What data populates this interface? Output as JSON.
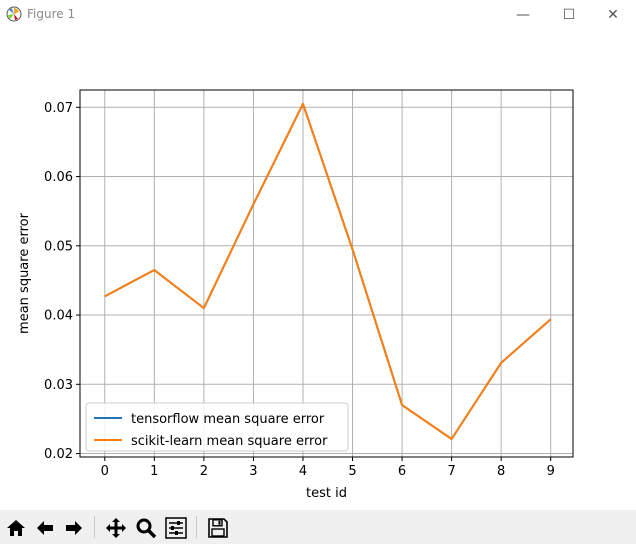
{
  "window": {
    "title": "Figure 1",
    "controls": {
      "minimize": "—",
      "maximize": "☐",
      "close": "✕"
    }
  },
  "toolbar": {
    "buttons": [
      {
        "name": "home-icon",
        "label": "Home"
      },
      {
        "name": "back-icon",
        "label": "Back"
      },
      {
        "name": "forward-icon",
        "label": "Forward"
      },
      {
        "name": "pan-icon",
        "label": "Pan"
      },
      {
        "name": "zoom-icon",
        "label": "Zoom"
      },
      {
        "name": "configure-subplots-icon",
        "label": "Subplots"
      },
      {
        "name": "save-icon",
        "label": "Save"
      }
    ]
  },
  "chart_data": {
    "type": "line",
    "title": "",
    "xlabel": "test id",
    "ylabel": "mean square error",
    "x": [
      0,
      1,
      2,
      3,
      4,
      5,
      6,
      7,
      8,
      9
    ],
    "xticks": [
      "0",
      "1",
      "2",
      "3",
      "4",
      "5",
      "6",
      "7",
      "8",
      "9"
    ],
    "yticks": [
      "0.02",
      "0.03",
      "0.04",
      "0.05",
      "0.06",
      "0.07"
    ],
    "xlim": [
      -0.5,
      9.45
    ],
    "ylim": [
      0.0195,
      0.0725
    ],
    "grid": true,
    "legend_position": "lower-left",
    "series": [
      {
        "name": "tensorflow mean square error",
        "color": "#1f77b4",
        "values": [
          0.0427,
          0.0465,
          0.041,
          0.056,
          0.0705,
          0.0495,
          0.027,
          0.0221,
          0.0331,
          0.0394
        ]
      },
      {
        "name": "scikit-learn mean square error",
        "color": "#ff7f0e",
        "values": [
          0.0427,
          0.0465,
          0.041,
          0.056,
          0.0705,
          0.0495,
          0.027,
          0.0221,
          0.0331,
          0.0394
        ]
      }
    ]
  }
}
